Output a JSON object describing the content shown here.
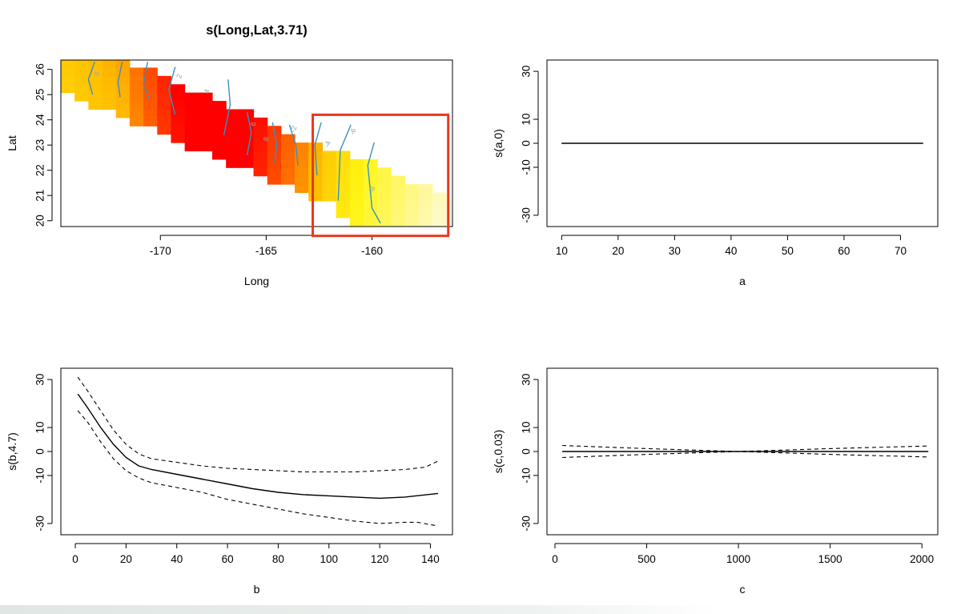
{
  "chart_data": [
    {
      "type": "heatmap",
      "title": "s(Long,Lat,3.71)",
      "xlabel": "Long",
      "ylabel": "Lat",
      "xlim": [
        -174.7,
        -156.2
      ],
      "ylim": [
        19.77,
        26.37
      ],
      "xticks": [
        -170,
        -165,
        -160
      ],
      "yticks": [
        20,
        21,
        22,
        23,
        24,
        25,
        26
      ],
      "contour_labels": [
        "0",
        "2",
        "4",
        "6",
        "8",
        "-2",
        "-4",
        "-6",
        "-8"
      ],
      "color_scale": [
        "#ffe83d",
        "#ff0000"
      ],
      "highlight_box": {
        "long_range": [
          -162.8,
          -156.4
        ],
        "lat_range": [
          19.4,
          24.2
        ],
        "color": "#e8381e"
      }
    },
    {
      "type": "line",
      "title": "",
      "xlabel": "a",
      "ylabel": "s(a,0)",
      "xlim": [
        7.4,
        76.6
      ],
      "ylim": [
        -34.7,
        34.7
      ],
      "xticks": [
        10,
        20,
        30,
        40,
        50,
        60,
        70
      ],
      "yticks": [
        -30,
        -10,
        0,
        10,
        30
      ],
      "series": [
        {
          "style": "solid",
          "x": [
            10,
            74
          ],
          "y": [
            0,
            0
          ]
        },
        {
          "style": "dashed",
          "x": [
            10,
            74
          ],
          "y": [
            0,
            0
          ]
        }
      ]
    },
    {
      "type": "line",
      "title": "",
      "xlabel": "b",
      "ylabel": "s(b,4.7)",
      "xlim": [
        -5.7,
        148.7
      ],
      "ylim": [
        -34.7,
        34.7
      ],
      "xticks": [
        0,
        20,
        40,
        60,
        80,
        100,
        120,
        140
      ],
      "yticks": [
        -30,
        -10,
        0,
        10,
        30
      ],
      "series": [
        {
          "style": "solid",
          "x": [
            1,
            5,
            10,
            15,
            20,
            25,
            30,
            40,
            50,
            60,
            70,
            80,
            90,
            100,
            110,
            120,
            130,
            143
          ],
          "y": [
            24,
            18,
            10,
            3,
            -2.5,
            -6,
            -7.5,
            -9.5,
            -11.5,
            -13.5,
            -15.5,
            -17,
            -18,
            -18.5,
            -19,
            -19.5,
            -19,
            -17.5
          ]
        },
        {
          "style": "dashed",
          "x": [
            1,
            5,
            10,
            15,
            20,
            25,
            30,
            40,
            50,
            60,
            70,
            80,
            90,
            100,
            110,
            120,
            130,
            138,
            143
          ],
          "y": [
            31,
            25,
            17,
            9,
            3,
            -1,
            -3,
            -4.5,
            -6,
            -7,
            -7.5,
            -8,
            -8.5,
            -8.5,
            -8.5,
            -8,
            -7.5,
            -6.5,
            -4
          ]
        },
        {
          "style": "dashed",
          "x": [
            1,
            5,
            10,
            15,
            20,
            25,
            30,
            40,
            50,
            60,
            70,
            80,
            90,
            100,
            110,
            120,
            130,
            135,
            140,
            143
          ],
          "y": [
            17,
            12,
            4,
            -3,
            -8,
            -11,
            -13,
            -15,
            -17,
            -20,
            -22,
            -24,
            -26,
            -27.5,
            -29,
            -30,
            -29.5,
            -29.5,
            -30.5,
            -31
          ]
        }
      ]
    },
    {
      "type": "line",
      "title": "",
      "xlabel": "c",
      "ylabel": "s(c,0.03)",
      "xlim": [
        -43.5,
        2086.5
      ],
      "ylim": [
        -34.7,
        34.7
      ],
      "xticks": [
        0,
        500,
        1000,
        1500,
        2000
      ],
      "yticks": [
        -30,
        -10,
        0,
        10,
        30
      ],
      "series": [
        {
          "style": "solid",
          "x": [
            40,
            2035
          ],
          "y": [
            0,
            0
          ]
        },
        {
          "style": "dashed",
          "x": [
            40,
            500,
            1000,
            1500,
            2035
          ],
          "y": [
            2.5,
            1.2,
            0,
            1.2,
            2.3
          ]
        },
        {
          "style": "dashed",
          "x": [
            40,
            500,
            1000,
            1500,
            2035
          ],
          "y": [
            -2.5,
            -1.2,
            0,
            -1.2,
            -2.3
          ]
        }
      ]
    }
  ]
}
